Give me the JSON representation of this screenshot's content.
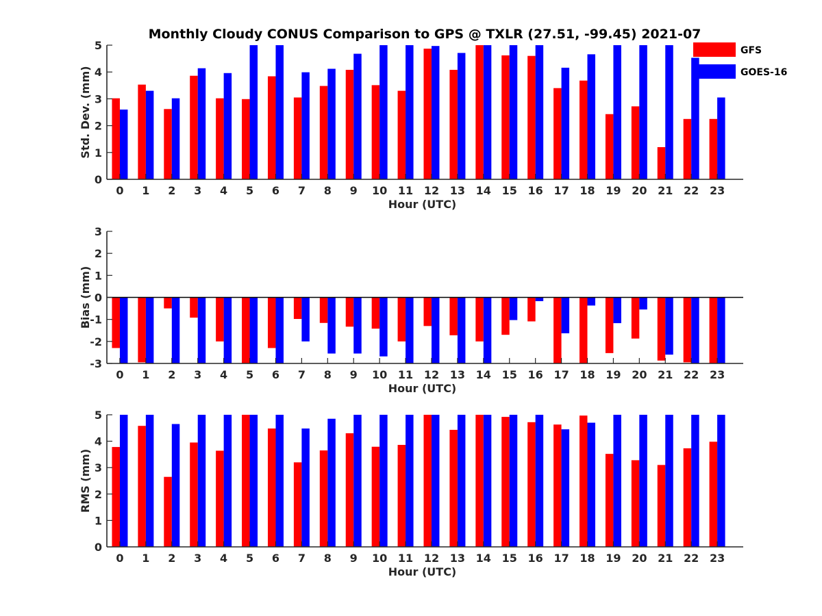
{
  "title": "Monthly Cloudy CONUS Comparison to GPS @ TXLR (27.51, -99.45) 2021-07",
  "legend": {
    "placement": "top-right",
    "items": [
      {
        "name": "GFS",
        "color": "#ff0000"
      },
      {
        "name": "GOES-16",
        "color": "#0000ff"
      }
    ]
  },
  "chart_data": [
    {
      "type": "bar",
      "ylabel": "Std. Dev. (mm)",
      "xlabel": "Hour (UTC)",
      "ylim": [
        0,
        5
      ],
      "yticks": [
        0,
        1,
        2,
        3,
        4,
        5
      ],
      "categories": [
        "0",
        "1",
        "2",
        "3",
        "4",
        "5",
        "6",
        "7",
        "8",
        "9",
        "10",
        "11",
        "12",
        "13",
        "14",
        "15",
        "16",
        "17",
        "18",
        "19",
        "20",
        "21",
        "22",
        "23"
      ],
      "series": [
        {
          "name": "GFS",
          "color": "#ff0000",
          "values": [
            3.02,
            3.53,
            2.62,
            3.86,
            3.02,
            2.99,
            3.84,
            3.05,
            3.48,
            4.08,
            3.51,
            3.3,
            4.87,
            4.08,
            5.0,
            4.62,
            4.6,
            3.4,
            3.68,
            2.43,
            2.72,
            1.2,
            2.25,
            2.25
          ]
        },
        {
          "name": "GOES-16",
          "color": "#0000ff",
          "values": [
            2.6,
            3.3,
            3.02,
            4.14,
            3.96,
            5.0,
            5.0,
            3.99,
            4.12,
            4.68,
            5.0,
            5.0,
            4.97,
            4.71,
            5.0,
            5.0,
            5.0,
            4.16,
            4.66,
            5.0,
            5.0,
            5.0,
            4.53,
            3.05
          ]
        }
      ]
    },
    {
      "type": "bar",
      "ylabel": "Bias (mm)",
      "xlabel": "Hour (UTC)",
      "ylim": [
        -3,
        3
      ],
      "yticks": [
        -3,
        -2,
        -1,
        0,
        1,
        2,
        3
      ],
      "categories": [
        "0",
        "1",
        "2",
        "3",
        "4",
        "5",
        "6",
        "7",
        "8",
        "9",
        "10",
        "11",
        "12",
        "13",
        "14",
        "15",
        "16",
        "17",
        "18",
        "19",
        "20",
        "21",
        "22",
        "23"
      ],
      "series": [
        {
          "name": "GFS",
          "color": "#ff0000",
          "values": [
            -2.3,
            -2.95,
            -0.5,
            -0.92,
            -2.0,
            -3.0,
            -2.3,
            -0.98,
            -1.16,
            -1.33,
            -1.42,
            -2.0,
            -1.3,
            -1.72,
            -2.0,
            -1.7,
            -1.09,
            -3.0,
            -3.0,
            -2.53,
            -1.87,
            -2.87,
            -2.95,
            -3.0
          ]
        },
        {
          "name": "GOES-16",
          "color": "#0000ff",
          "values": [
            -3.0,
            -3.0,
            -3.0,
            -3.0,
            -3.0,
            -3.0,
            -3.0,
            -2.0,
            -2.55,
            -2.55,
            -2.68,
            -3.0,
            -3.0,
            -3.0,
            -3.0,
            -1.03,
            -0.17,
            -1.63,
            -0.37,
            -1.17,
            -0.55,
            -2.6,
            -3.0,
            -3.0
          ]
        }
      ]
    },
    {
      "type": "bar",
      "ylabel": "RMS (mm)",
      "xlabel": "Hour (UTC)",
      "ylim": [
        0,
        5
      ],
      "yticks": [
        0,
        1,
        2,
        3,
        4,
        5
      ],
      "categories": [
        "0",
        "1",
        "2",
        "3",
        "4",
        "5",
        "6",
        "7",
        "8",
        "9",
        "10",
        "11",
        "12",
        "13",
        "14",
        "15",
        "16",
        "17",
        "18",
        "19",
        "20",
        "21",
        "22",
        "23"
      ],
      "series": [
        {
          "name": "GFS",
          "color": "#ff0000",
          "values": [
            3.78,
            4.58,
            2.65,
            3.95,
            3.64,
            5.0,
            4.48,
            3.2,
            3.65,
            4.3,
            3.79,
            3.86,
            5.0,
            4.43,
            5.0,
            4.92,
            4.72,
            4.63,
            4.97,
            3.52,
            3.28,
            3.1,
            3.73,
            3.98
          ]
        },
        {
          "name": "GOES-16",
          "color": "#0000ff",
          "values": [
            5.0,
            5.0,
            4.65,
            5.0,
            5.0,
            5.0,
            5.0,
            4.48,
            4.85,
            5.0,
            5.0,
            5.0,
            5.0,
            5.0,
            5.0,
            5.0,
            5.0,
            4.45,
            4.7,
            5.0,
            5.0,
            5.0,
            5.0,
            5.0
          ]
        }
      ]
    }
  ]
}
